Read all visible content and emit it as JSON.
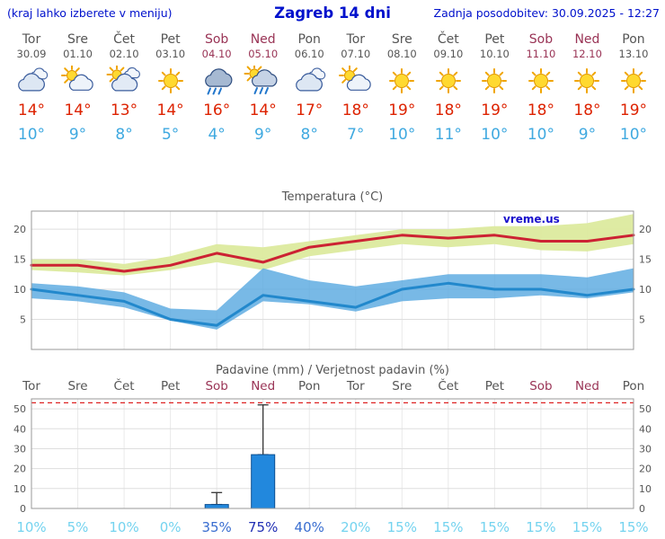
{
  "header": {
    "hint": "(kraj lahko izberete v meniju)",
    "title": "Zagreb 14 dni",
    "updated": "Zadnja posodobitev: 30.09.2025 - 12:27"
  },
  "colors": {
    "header_blue": "#0011cc",
    "day_gray": "#555555",
    "weekend_red": "#993355",
    "high_red": "#dd2200",
    "low_blue": "#3fa9e0",
    "prob_low": "#74d3ef",
    "prob_mid": "#3a6ed0",
    "prob_high": "#212fb4",
    "grid_gray": "#dedede",
    "frame_gray": "#999999"
  },
  "days": [
    {
      "name": "Tor",
      "date": "30.09",
      "weekend": false,
      "icon": "cloudy",
      "high": "14°",
      "low": "10°"
    },
    {
      "name": "Sre",
      "date": "01.10",
      "weekend": false,
      "icon": "partly-cloudy",
      "high": "14°",
      "low": "9°"
    },
    {
      "name": "Čet",
      "date": "02.10",
      "weekend": false,
      "icon": "mostly-cloudy",
      "high": "13°",
      "low": "8°"
    },
    {
      "name": "Pet",
      "date": "03.10",
      "weekend": false,
      "icon": "sunny",
      "high": "14°",
      "low": "5°"
    },
    {
      "name": "Sob",
      "date": "04.10",
      "weekend": true,
      "icon": "rain",
      "high": "16°",
      "low": "4°"
    },
    {
      "name": "Ned",
      "date": "05.10",
      "weekend": true,
      "icon": "rain-sun",
      "high": "14°",
      "low": "9°"
    },
    {
      "name": "Pon",
      "date": "06.10",
      "weekend": false,
      "icon": "cloudy",
      "high": "17°",
      "low": "8°"
    },
    {
      "name": "Tor",
      "date": "07.10",
      "weekend": false,
      "icon": "partly-cloudy",
      "high": "18°",
      "low": "7°"
    },
    {
      "name": "Sre",
      "date": "08.10",
      "weekend": false,
      "icon": "sunny",
      "high": "19°",
      "low": "10°"
    },
    {
      "name": "Čet",
      "date": "09.10",
      "weekend": false,
      "icon": "sunny",
      "high": "18°",
      "low": "11°"
    },
    {
      "name": "Pet",
      "date": "10.10",
      "weekend": false,
      "icon": "sunny",
      "high": "19°",
      "low": "10°"
    },
    {
      "name": "Sob",
      "date": "11.10",
      "weekend": true,
      "icon": "sunny",
      "high": "18°",
      "low": "10°"
    },
    {
      "name": "Ned",
      "date": "12.10",
      "weekend": true,
      "icon": "sunny",
      "high": "18°",
      "low": "9°"
    },
    {
      "name": "Pon",
      "date": "13.10",
      "weekend": false,
      "icon": "sunny",
      "high": "19°",
      "low": "10°"
    }
  ],
  "chart_data": [
    {
      "type": "line",
      "title": "Temperatura (°C)",
      "ylim": [
        0,
        23
      ],
      "yticks": [
        5,
        10,
        15,
        20
      ],
      "x_count": 14,
      "watermark": "vreme.us",
      "bands": [
        {
          "name": "max-temp-range",
          "color": "#dcea9e",
          "opacity": 0.95,
          "upper": [
            15,
            15,
            14.2,
            15.5,
            17.5,
            17,
            18,
            19,
            20,
            20,
            20.5,
            20.5,
            21,
            22.5
          ],
          "lower": [
            13.2,
            12.8,
            12.3,
            13.2,
            14.5,
            13.2,
            15.5,
            16.5,
            17.5,
            17,
            17.5,
            16.5,
            16.3,
            17.5
          ]
        },
        {
          "name": "min-temp-range",
          "color": "#56a7e0",
          "opacity": 0.8,
          "upper": [
            11,
            10.5,
            9.5,
            6.8,
            6.5,
            13.5,
            11.5,
            10.5,
            11.5,
            12.5,
            12.5,
            12.5,
            12,
            13.5
          ],
          "lower": [
            8.5,
            8,
            7,
            4.8,
            3.3,
            8,
            7.5,
            6.3,
            8,
            8.5,
            8.5,
            9,
            8.5,
            9.5
          ]
        }
      ],
      "lines": [
        {
          "name": "max-temp",
          "color": "#cc2233",
          "width": 3,
          "values": [
            14,
            14,
            13,
            14,
            16,
            14.5,
            17,
            18,
            19,
            18.5,
            19,
            18,
            18,
            19
          ]
        },
        {
          "name": "min-temp",
          "color": "#2288cc",
          "width": 3,
          "values": [
            10,
            9,
            8,
            5,
            4,
            9,
            8,
            7,
            10,
            11,
            10,
            10,
            9,
            10
          ]
        }
      ]
    },
    {
      "type": "bar",
      "title": "Padavine (mm) / Verjetnost padavin (%)",
      "ylim": [
        0,
        55
      ],
      "yticks": [
        0,
        10,
        20,
        30,
        40,
        50
      ],
      "threshold_line": {
        "value": 53,
        "color": "#dd2222"
      },
      "bar_color": "#2288dd",
      "values": [
        0,
        0,
        0,
        0,
        2,
        27,
        0,
        0,
        0,
        0,
        0,
        0,
        0,
        0
      ],
      "whisker_max": [
        0,
        0,
        0,
        0,
        8,
        52,
        0,
        0,
        0,
        0,
        0,
        0,
        0,
        0
      ],
      "probabilities": [
        "10%",
        "5%",
        "10%",
        "0%",
        "35%",
        "75%",
        "40%",
        "20%",
        "15%",
        "15%",
        "15%",
        "15%",
        "15%",
        "15%"
      ]
    }
  ]
}
